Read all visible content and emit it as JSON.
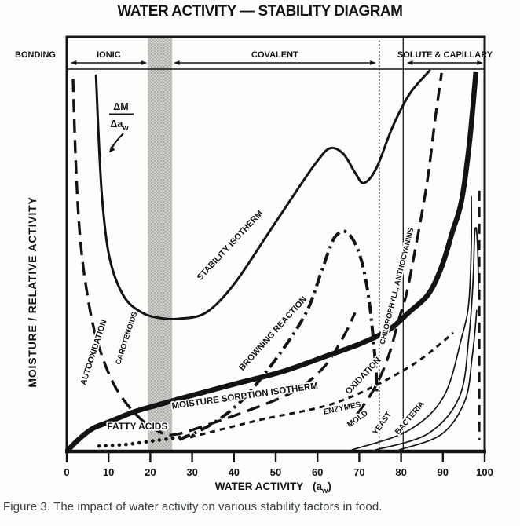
{
  "title": "WATER ACTIVITY — STABILITY DIAGRAM",
  "caption": "Figure 3. The impact of water activity on various stability factors in food.",
  "header_band": {
    "outside_label": "BONDING",
    "sections": [
      {
        "label": "IONIC",
        "x_start": 0.9,
        "x_end": 19.2
      },
      {
        "label": "COVALENT",
        "x_start": 25.6,
        "x_end": 74.0
      },
      {
        "label": "SOLUTE & CAPILLARY",
        "x_start": 81.4,
        "x_end": 99.6
      }
    ]
  },
  "annotation": {
    "numerator": "ΔM",
    "denominator": "Δa",
    "denominator_sub": "w"
  },
  "chart_data": {
    "type": "line",
    "title": "WATER ACTIVITY — STABILITY DIAGRAM",
    "xlabel": "WATER ACTIVITY",
    "x_unit": {
      "pre": "(a",
      "sub": "w",
      "post": ")"
    },
    "ylabel": "MOISTURE  /  RELATIVE ACTIVITY",
    "x_ticks": [
      0,
      10,
      20,
      30,
      40,
      50,
      60,
      70,
      80,
      90,
      100
    ],
    "xlim": [
      0,
      100
    ],
    "ylim": [
      0,
      100
    ],
    "y_axis_qualitative": true,
    "grid": false,
    "shaded_band": [
      19.4,
      25.2
    ],
    "vlines": [
      {
        "x": 74.8,
        "style": "dotted"
      },
      {
        "x": 80.5,
        "style": "solid"
      }
    ],
    "series": [
      {
        "name": "autoxidation-oxidation",
        "label": "AUTOOXIDATION / CAROTENOIDS / OXIDATION",
        "style": "longdash",
        "points": [
          [
            1.5,
            97.5
          ],
          [
            2.1,
            77
          ],
          [
            3,
            58.5
          ],
          [
            4.5,
            44
          ],
          [
            7,
            30
          ],
          [
            11.3,
            17.5
          ],
          [
            17,
            9.2
          ],
          [
            22.6,
            4.9
          ],
          [
            26.3,
            4.5
          ],
          [
            33.8,
            7
          ],
          [
            44.2,
            11
          ],
          [
            54.5,
            15.8
          ],
          [
            61.5,
            22
          ],
          [
            66.2,
            30
          ],
          [
            69,
            36.3
          ]
        ]
      },
      {
        "name": "stability-isotherm",
        "label": "STABILITY ISOTHERM",
        "style": "solid",
        "points": [
          [
            7,
            98.6
          ],
          [
            7.5,
            85.2
          ],
          [
            8.5,
            65.7
          ],
          [
            10.3,
            50.3
          ],
          [
            13.7,
            40.5
          ],
          [
            18,
            36.3
          ],
          [
            22.2,
            34.9
          ],
          [
            26.9,
            34.7
          ],
          [
            33.3,
            36.3
          ],
          [
            40,
            43.7
          ],
          [
            47.9,
            56.5
          ],
          [
            56,
            69.8
          ],
          [
            60,
            76
          ],
          [
            63,
            79.3
          ],
          [
            66.2,
            77.8
          ],
          [
            69,
            72.9
          ],
          [
            71.1,
            70.2
          ],
          [
            74.1,
            74.1
          ],
          [
            78,
            85
          ],
          [
            82.1,
            93.6
          ],
          [
            87,
            99.8
          ]
        ]
      },
      {
        "name": "moisture-sorption-isotherm",
        "label": "MOISTURE SORPTION ISOTHERM",
        "style": "thick",
        "points": [
          [
            0,
            0
          ],
          [
            2.8,
            3.1
          ],
          [
            6.2,
            6
          ],
          [
            10.3,
            7.8
          ],
          [
            16,
            10.3
          ],
          [
            21.6,
            12.1
          ],
          [
            29.1,
            14.4
          ],
          [
            40.4,
            17.7
          ],
          [
            51.7,
            20.9
          ],
          [
            63,
            25.3
          ],
          [
            70.5,
            28.3
          ],
          [
            77.1,
            31.8
          ],
          [
            81.8,
            36.3
          ],
          [
            86.5,
            41.1
          ],
          [
            89.7,
            48.3
          ],
          [
            92.3,
            57.5
          ],
          [
            94.5,
            65.7
          ],
          [
            96.4,
            81.1
          ],
          [
            97.9,
            99.2
          ]
        ]
      },
      {
        "name": "browning-reaction",
        "label": "BROWNING REACTION",
        "style": "dashdot",
        "points": [
          [
            26.9,
            3.1
          ],
          [
            34.8,
            7.2
          ],
          [
            42.3,
            13.8
          ],
          [
            50.8,
            25.3
          ],
          [
            57.3,
            36.3
          ],
          [
            60.7,
            46.2
          ],
          [
            63,
            53.4
          ],
          [
            64.5,
            56.5
          ],
          [
            66.7,
            57.5
          ],
          [
            69,
            54.4
          ],
          [
            70.9,
            48.3
          ],
          [
            72.4,
            39
          ],
          [
            73.5,
            27.7
          ],
          [
            74.1,
            19.5
          ],
          [
            74.2,
            14.4
          ]
        ]
      },
      {
        "name": "fatty-acids",
        "label": "FATTY ACIDS",
        "style": "dotted",
        "points": [
          [
            7.7,
            1.4
          ],
          [
            14.1,
            1.8
          ],
          [
            21.6,
            2.9
          ],
          [
            31,
            4.3
          ]
        ]
      },
      {
        "name": "enzymes",
        "label": "ENZYMES",
        "style": "shortdash",
        "points": [
          [
            29.5,
            3.7
          ],
          [
            46,
            8.2
          ],
          [
            64.8,
            12.9
          ],
          [
            81.8,
            22
          ],
          [
            92.5,
            31
          ]
        ]
      },
      {
        "name": "chlorophyll-anthocyanins",
        "label": "CHLOROPHYLL, ANTHOCYANINS",
        "style": "longdash",
        "points": [
          [
            69.5,
            9.7
          ],
          [
            73.9,
            17
          ],
          [
            77.1,
            25.3
          ],
          [
            79.3,
            33.9
          ],
          [
            81.4,
            41.7
          ],
          [
            83.3,
            52.4
          ],
          [
            85.2,
            63.7
          ],
          [
            86.7,
            73.9
          ],
          [
            88.2,
            87.3
          ],
          [
            89.7,
            99
          ]
        ]
      },
      {
        "name": "mold",
        "label": "MOLD",
        "style": "thin",
        "points": [
          [
            68.2,
            0.4
          ],
          [
            81.8,
            5.5
          ],
          [
            90.2,
            14.4
          ],
          [
            94.5,
            29.8
          ],
          [
            96.2,
            39
          ],
          [
            96.8,
            54.4
          ],
          [
            96.8,
            66.8
          ]
        ]
      },
      {
        "name": "yeast",
        "label": "YEAST",
        "style": "thin",
        "points": [
          [
            73.9,
            0.4
          ],
          [
            86.5,
            4.7
          ],
          [
            94,
            14.4
          ],
          [
            96.2,
            29.8
          ],
          [
            97.2,
            44.1
          ],
          [
            97.6,
            56.5
          ],
          [
            97.9,
            58.5
          ],
          [
            98.1,
            57.3
          ],
          [
            98.4,
            50.3
          ],
          [
            98.5,
            40.5
          ]
        ]
      },
      {
        "name": "bacteria",
        "label": "BACTERIA",
        "style": "thin",
        "points": [
          [
            79.5,
            0.4
          ],
          [
            89.7,
            4.5
          ],
          [
            95.3,
            13.3
          ],
          [
            97,
            24.6
          ],
          [
            97.7,
            31.8
          ],
          [
            98.1,
            37
          ]
        ]
      },
      {
        "name": "upper-aw-limit",
        "label": "",
        "style": "vdash",
        "points": [
          [
            98.7,
            68.2
          ],
          [
            98.7,
            3.1
          ]
        ]
      }
    ],
    "labels": [
      {
        "name": "stability-isotherm",
        "text": "STABILITY ISOTHERM",
        "x": 39.5,
        "y": 53.4,
        "rot": -47,
        "size": 11
      },
      {
        "name": "browning-reaction",
        "text": "BROWNING REACTION",
        "x": 49.8,
        "y": 30.4,
        "rot": -48,
        "size": 11
      },
      {
        "name": "moisture-sorption-isotherm",
        "text": "MOISTURE SORPTION ISOTHERM",
        "x": 42.7,
        "y": 13.8,
        "rot": -8,
        "size": 11.5
      },
      {
        "name": "oxidation",
        "text": "OXIDATION",
        "x": 71.4,
        "y": 19.3,
        "rot": -47,
        "size": 11
      },
      {
        "name": "autoxidation",
        "text": "AUTOOXIDATION",
        "x": 7,
        "y": 25.7,
        "rot": -72,
        "size": 10.5
      },
      {
        "name": "carotenoids",
        "text": "CAROTENOIDS",
        "x": 14.8,
        "y": 29.4,
        "rot": -72,
        "size": 9.5
      },
      {
        "name": "chlorophyll-anthocyanins",
        "text": "CHLOROPHYLL, ANTHOCYANINS",
        "x": 79.5,
        "y": 43.1,
        "rot": -76,
        "size": 9.5
      },
      {
        "name": "enzymes",
        "text": "ENZYMES",
        "x": 66,
        "y": 10.7,
        "rot": -12,
        "size": 10
      },
      {
        "name": "mold",
        "text": "MOLD",
        "x": 69.9,
        "y": 8,
        "rot": -36,
        "size": 10
      },
      {
        "name": "yeast",
        "text": "YEAST",
        "x": 75.9,
        "y": 7,
        "rot": -55,
        "size": 10
      },
      {
        "name": "bacteria",
        "text": "BACTERIA",
        "x": 82.5,
        "y": 8.4,
        "rot": -50,
        "size": 10
      },
      {
        "name": "fatty-acids",
        "text": "FATTY ACIDS",
        "x": 16.9,
        "y": 5.7,
        "rot": 0,
        "size": 12
      }
    ]
  }
}
